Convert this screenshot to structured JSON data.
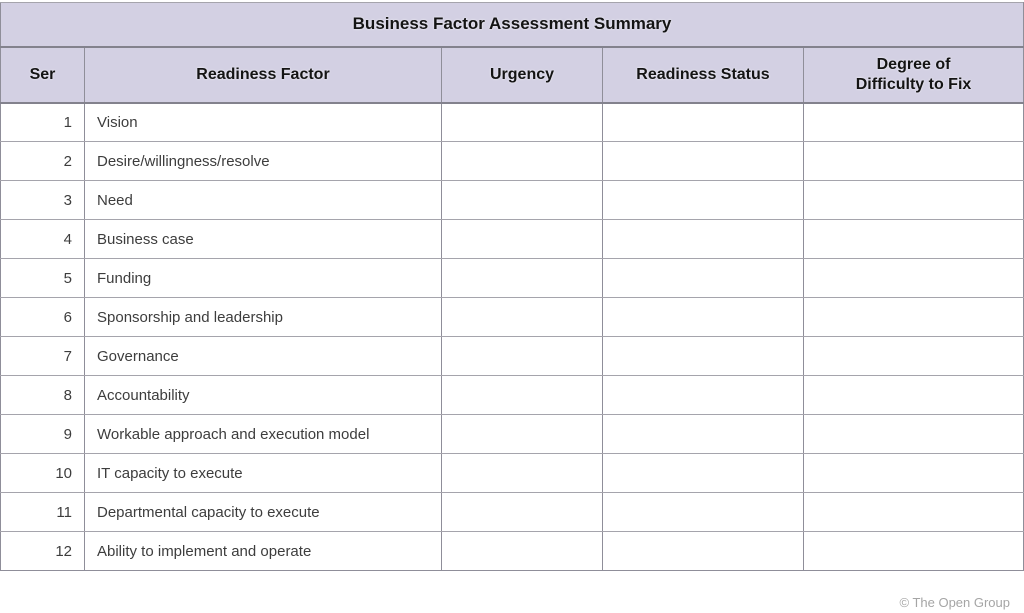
{
  "table": {
    "title": "Business Factor Assessment Summary",
    "columns": [
      {
        "label": "Ser"
      },
      {
        "label": "Readiness Factor"
      },
      {
        "label": "Urgency"
      },
      {
        "label": "Readiness Status"
      },
      {
        "label": "Degree of\nDifficulty to Fix"
      }
    ],
    "rows": [
      {
        "ser": "1",
        "factor": "Vision",
        "urgency": "",
        "readiness_status": "",
        "difficulty_to_fix": ""
      },
      {
        "ser": "2",
        "factor": "Desire/willingness/resolve",
        "urgency": "",
        "readiness_status": "",
        "difficulty_to_fix": ""
      },
      {
        "ser": "3",
        "factor": "Need",
        "urgency": "",
        "readiness_status": "",
        "difficulty_to_fix": ""
      },
      {
        "ser": "4",
        "factor": "Business case",
        "urgency": "",
        "readiness_status": "",
        "difficulty_to_fix": ""
      },
      {
        "ser": "5",
        "factor": "Funding",
        "urgency": "",
        "readiness_status": "",
        "difficulty_to_fix": ""
      },
      {
        "ser": "6",
        "factor": "Sponsorship and leadership",
        "urgency": "",
        "readiness_status": "",
        "difficulty_to_fix": ""
      },
      {
        "ser": "7",
        "factor": "Governance",
        "urgency": "",
        "readiness_status": "",
        "difficulty_to_fix": ""
      },
      {
        "ser": "8",
        "factor": "Accountability",
        "urgency": "",
        "readiness_status": "",
        "difficulty_to_fix": ""
      },
      {
        "ser": "9",
        "factor": "Workable approach and execution model",
        "urgency": "",
        "readiness_status": "",
        "difficulty_to_fix": ""
      },
      {
        "ser": "10",
        "factor": "IT capacity to execute",
        "urgency": "",
        "readiness_status": "",
        "difficulty_to_fix": ""
      },
      {
        "ser": "11",
        "factor": "Departmental capacity to execute",
        "urgency": "",
        "readiness_status": "",
        "difficulty_to_fix": ""
      },
      {
        "ser": "12",
        "factor": "Ability to implement and operate",
        "urgency": "",
        "readiness_status": "",
        "difficulty_to_fix": ""
      }
    ]
  },
  "footer": {
    "copyright": "© The Open Group"
  },
  "colors": {
    "header_bg": "#d3d0e3",
    "border_v": "#8f8e99",
    "border_h": "#a5a4ac",
    "border_heavy": "#83828d",
    "text_body": "#3d3d3d",
    "text_header": "#141414",
    "text_copyright": "#a5a5a5"
  }
}
